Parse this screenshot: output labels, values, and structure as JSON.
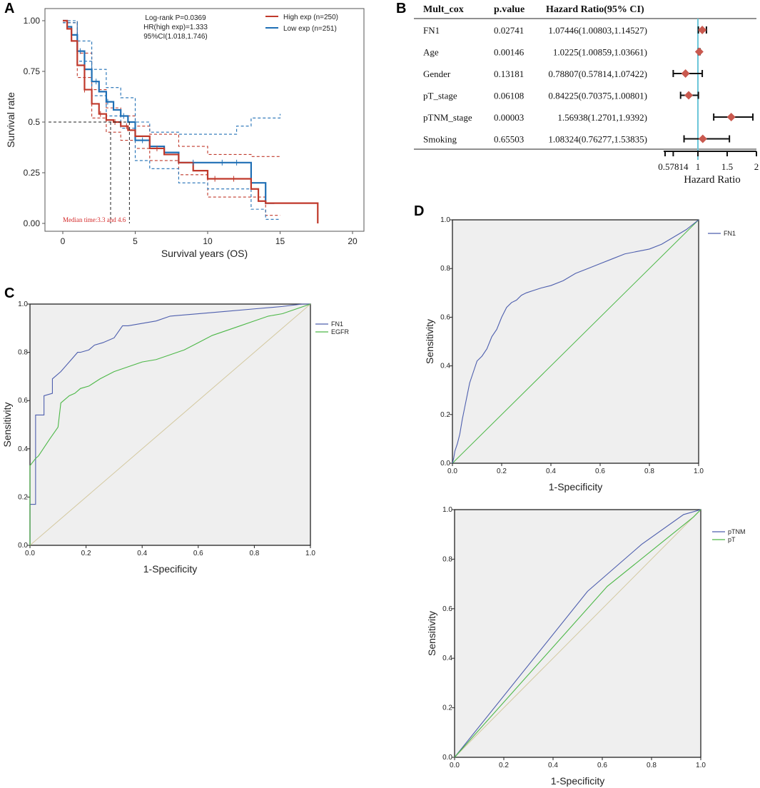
{
  "panel_labels": {
    "a": "A",
    "b": "B",
    "c": "C",
    "d": "D"
  },
  "chart_data": [
    {
      "id": "A",
      "type": "line",
      "title": "",
      "xlabel": "Survival years (OS)",
      "ylabel": "Survival rate",
      "xlim": [
        0,
        20
      ],
      "ylim": [
        0,
        1
      ],
      "xticks": [
        "0",
        "5",
        "10",
        "15",
        "20"
      ],
      "yticks": [
        "0.00",
        "0.25",
        "0.5",
        "0.75",
        "1.00"
      ],
      "annotation": [
        "Log-rank P=0.0369",
        "HR(high exp)=1.333",
        "95%CI(1.018,1.746)"
      ],
      "median_note": "Median time:3.3 and 4.6",
      "median_values": [
        3.3,
        4.6
      ],
      "legend": [
        "High exp (n=250)",
        "Low exp (n=251)"
      ],
      "colors": {
        "high": "#c0392b",
        "low": "#1f6fb5"
      },
      "series": [
        {
          "name": "High exp (n=250)",
          "x": [
            0,
            0.3,
            0.6,
            1.0,
            1.5,
            2.0,
            2.5,
            3.0,
            3.5,
            4.0,
            4.5,
            5.0,
            6.0,
            7.0,
            8.0,
            9.0,
            10.0,
            12.0,
            13.0,
            13.5,
            14.0,
            15.0,
            17.0,
            17.6
          ],
          "y": [
            1.0,
            0.96,
            0.9,
            0.78,
            0.66,
            0.59,
            0.54,
            0.51,
            0.5,
            0.48,
            0.46,
            0.43,
            0.37,
            0.34,
            0.3,
            0.26,
            0.22,
            0.22,
            0.17,
            0.11,
            0.1,
            0.1,
            0.1,
            0.0
          ]
        },
        {
          "name": "Low exp (n=251)",
          "x": [
            0,
            0.3,
            0.6,
            1.0,
            1.5,
            2.0,
            2.5,
            3.0,
            3.5,
            4.0,
            4.5,
            5.0,
            6.0,
            7.0,
            8.0,
            9.0,
            11.0,
            12.0,
            13.0,
            13.5,
            14.0,
            14.6
          ],
          "y": [
            1.0,
            0.97,
            0.93,
            0.85,
            0.76,
            0.7,
            0.65,
            0.6,
            0.56,
            0.53,
            0.5,
            0.41,
            0.38,
            0.35,
            0.3,
            0.3,
            0.3,
            0.3,
            0.2,
            0.2,
            0.1,
            0.1
          ]
        },
        {
          "name": "High exp CI upper",
          "x": [
            0,
            1,
            2,
            3,
            4,
            5,
            6,
            8,
            10,
            12,
            13,
            15
          ],
          "y": [
            1.0,
            0.84,
            0.66,
            0.57,
            0.53,
            0.48,
            0.44,
            0.38,
            0.34,
            0.34,
            0.33,
            0.33
          ]
        },
        {
          "name": "High exp CI lower",
          "x": [
            0,
            1,
            2,
            3,
            4,
            5,
            6,
            8,
            10,
            12,
            13,
            14,
            15
          ],
          "y": [
            0.99,
            0.72,
            0.52,
            0.45,
            0.41,
            0.37,
            0.31,
            0.24,
            0.13,
            0.13,
            0.13,
            0.04,
            0.04
          ]
        },
        {
          "name": "Low exp CI upper",
          "x": [
            0,
            1,
            2,
            3,
            4,
            5,
            6,
            8,
            10,
            12,
            13,
            14,
            15
          ],
          "y": [
            1.0,
            0.9,
            0.76,
            0.67,
            0.62,
            0.5,
            0.45,
            0.44,
            0.44,
            0.48,
            0.52,
            0.52,
            0.54
          ]
        },
        {
          "name": "Low exp CI lower",
          "x": [
            0,
            1,
            2,
            3,
            4,
            5,
            6,
            8,
            10,
            12,
            13,
            14,
            15
          ],
          "y": [
            0.99,
            0.8,
            0.63,
            0.53,
            0.47,
            0.31,
            0.27,
            0.2,
            0.17,
            0.17,
            0.07,
            0.02,
            0.02
          ]
        }
      ]
    },
    {
      "id": "B",
      "type": "table",
      "title": "",
      "columns": [
        "Mult_cox",
        "p.value",
        "Hazard Ratio(95% CI)"
      ],
      "rows": [
        {
          "name": "FN1",
          "p": "0.02741",
          "hr_text": "1.07446(1.00803,1.14527)",
          "hr": 1.07446,
          "lo": 1.00803,
          "hi": 1.14527
        },
        {
          "name": "Age",
          "p": "0.00146",
          "hr_text": "1.0225(1.00859,1.03661)",
          "hr": 1.0225,
          "lo": 1.00859,
          "hi": 1.03661
        },
        {
          "name": "Gender",
          "p": "0.13181",
          "hr_text": "0.78807(0.57814,1.07422)",
          "hr": 0.78807,
          "lo": 0.57814,
          "hi": 1.07422
        },
        {
          "name": "pT_stage",
          "p": "0.06108",
          "hr_text": "0.84225(0.70375,1.00801)",
          "hr": 0.84225,
          "lo": 0.70375,
          "hi": 1.00801
        },
        {
          "name": "pTNM_stage",
          "p": "0.00003",
          "hr_text": "1.56938(1.2701,1.9392)",
          "hr": 1.56938,
          "lo": 1.2701,
          "hi": 1.9392
        },
        {
          "name": "Smoking",
          "p": "0.65503",
          "hr_text": "1.08324(0.76277,1.53835)",
          "hr": 1.08324,
          "lo": 0.76277,
          "hi": 1.53835
        }
      ],
      "xlabel": "Hazard Ratio",
      "xticks": [
        0.57814,
        1,
        1.5,
        2
      ],
      "xtick_labels": [
        "0.57814",
        "1",
        "1.5",
        "2"
      ],
      "reference_line": 1,
      "colors": {
        "marker": "#c9594f",
        "reference": "#6cc6d9"
      }
    },
    {
      "id": "C",
      "type": "line",
      "title": "",
      "xlabel": "1-Specificity",
      "ylabel": "Sensitivity",
      "xlim": [
        0,
        1
      ],
      "ylim": [
        0,
        1
      ],
      "xticks": [
        "0.0",
        "0.2",
        "0.4",
        "0.6",
        "0.8",
        "1.0"
      ],
      "yticks": [
        "0.0",
        "0.2",
        "0.4",
        "0.6",
        "0.8",
        "1.0"
      ],
      "legend": [
        "FN1",
        "EGFR"
      ],
      "colors": {
        "FN1": "#4e5fae",
        "EGFR": "#4db848",
        "diag": "#d4c9a0"
      },
      "series": [
        {
          "name": "FN1",
          "x": [
            0,
            0,
            0.02,
            0.02,
            0.05,
            0.05,
            0.08,
            0.08,
            0.11,
            0.14,
            0.17,
            0.18,
            0.21,
            0.23,
            0.26,
            0.3,
            0.33,
            0.35,
            0.4,
            0.45,
            0.5,
            0.6,
            0.7,
            0.8,
            0.9,
            0.97,
            1.0
          ],
          "y": [
            0,
            0.17,
            0.17,
            0.54,
            0.54,
            0.62,
            0.63,
            0.69,
            0.72,
            0.76,
            0.8,
            0.8,
            0.81,
            0.83,
            0.84,
            0.86,
            0.91,
            0.91,
            0.92,
            0.93,
            0.95,
            0.96,
            0.97,
            0.98,
            0.99,
            1.0,
            1.0
          ]
        },
        {
          "name": "EGFR",
          "x": [
            0,
            0,
            0.02,
            0.03,
            0.07,
            0.1,
            0.11,
            0.14,
            0.16,
            0.18,
            0.21,
            0.25,
            0.3,
            0.35,
            0.4,
            0.45,
            0.5,
            0.55,
            0.6,
            0.65,
            0.7,
            0.75,
            0.8,
            0.85,
            0.9,
            0.95,
            1.0
          ],
          "y": [
            0,
            0.33,
            0.36,
            0.37,
            0.44,
            0.49,
            0.59,
            0.62,
            0.63,
            0.65,
            0.66,
            0.69,
            0.72,
            0.74,
            0.76,
            0.77,
            0.79,
            0.81,
            0.84,
            0.87,
            0.89,
            0.91,
            0.93,
            0.95,
            0.96,
            0.98,
            1.0
          ]
        },
        {
          "name": "reference",
          "x": [
            0,
            1
          ],
          "y": [
            0,
            1
          ]
        }
      ]
    },
    {
      "id": "D-top",
      "type": "line",
      "title": "",
      "xlabel": "1-Specificity",
      "ylabel": "Sensitivity",
      "xlim": [
        0,
        1
      ],
      "ylim": [
        0,
        1
      ],
      "xticks": [
        "0.0",
        "0.2",
        "0.4",
        "0.6",
        "0.8",
        "1.0"
      ],
      "yticks": [
        "0.0",
        "0.2",
        "0.4",
        "0.6",
        "0.8",
        "1.0"
      ],
      "legend": [
        "FN1"
      ],
      "colors": {
        "FN1": "#4e5fae",
        "diag": "#4db848"
      },
      "series": [
        {
          "name": "FN1",
          "x": [
            0,
            0.005,
            0.01,
            0.02,
            0.03,
            0.04,
            0.05,
            0.06,
            0.07,
            0.08,
            0.09,
            0.1,
            0.12,
            0.14,
            0.16,
            0.18,
            0.2,
            0.22,
            0.24,
            0.26,
            0.28,
            0.3,
            0.33,
            0.36,
            0.4,
            0.45,
            0.5,
            0.55,
            0.6,
            0.65,
            0.7,
            0.75,
            0.8,
            0.85,
            0.9,
            0.95,
            1.0
          ],
          "y": [
            0,
            0.02,
            0.05,
            0.08,
            0.12,
            0.18,
            0.23,
            0.28,
            0.33,
            0.36,
            0.39,
            0.42,
            0.44,
            0.47,
            0.52,
            0.55,
            0.6,
            0.64,
            0.66,
            0.67,
            0.69,
            0.7,
            0.71,
            0.72,
            0.73,
            0.75,
            0.78,
            0.8,
            0.82,
            0.84,
            0.86,
            0.87,
            0.88,
            0.9,
            0.93,
            0.96,
            1.0
          ]
        },
        {
          "name": "reference",
          "x": [
            0,
            1
          ],
          "y": [
            0,
            1
          ]
        }
      ]
    },
    {
      "id": "D-bottom",
      "type": "line",
      "title": "",
      "xlabel": "1-Specificity",
      "ylabel": "Sensitivity",
      "xlim": [
        0,
        1
      ],
      "ylim": [
        0,
        1
      ],
      "xticks": [
        "0.0",
        "0.2",
        "0.4",
        "0.6",
        "0.8",
        "1.0"
      ],
      "yticks": [
        "0.0",
        "0.2",
        "0.4",
        "0.6",
        "0.8",
        "1.0"
      ],
      "legend": [
        "pTNM",
        "pT"
      ],
      "colors": {
        "pTNM": "#4e5fae",
        "pT": "#4db848",
        "diag": "#d4c9a0"
      },
      "series": [
        {
          "name": "pTNM",
          "x": [
            0,
            0.54,
            0.76,
            0.93,
            1.0
          ],
          "y": [
            0,
            0.67,
            0.86,
            0.98,
            1.0
          ]
        },
        {
          "name": "pT",
          "x": [
            0,
            0.62,
            0.97,
            1.0
          ],
          "y": [
            0,
            0.69,
            0.97,
            1.0
          ]
        },
        {
          "name": "reference",
          "x": [
            0,
            1
          ],
          "y": [
            0,
            1
          ]
        }
      ]
    }
  ]
}
